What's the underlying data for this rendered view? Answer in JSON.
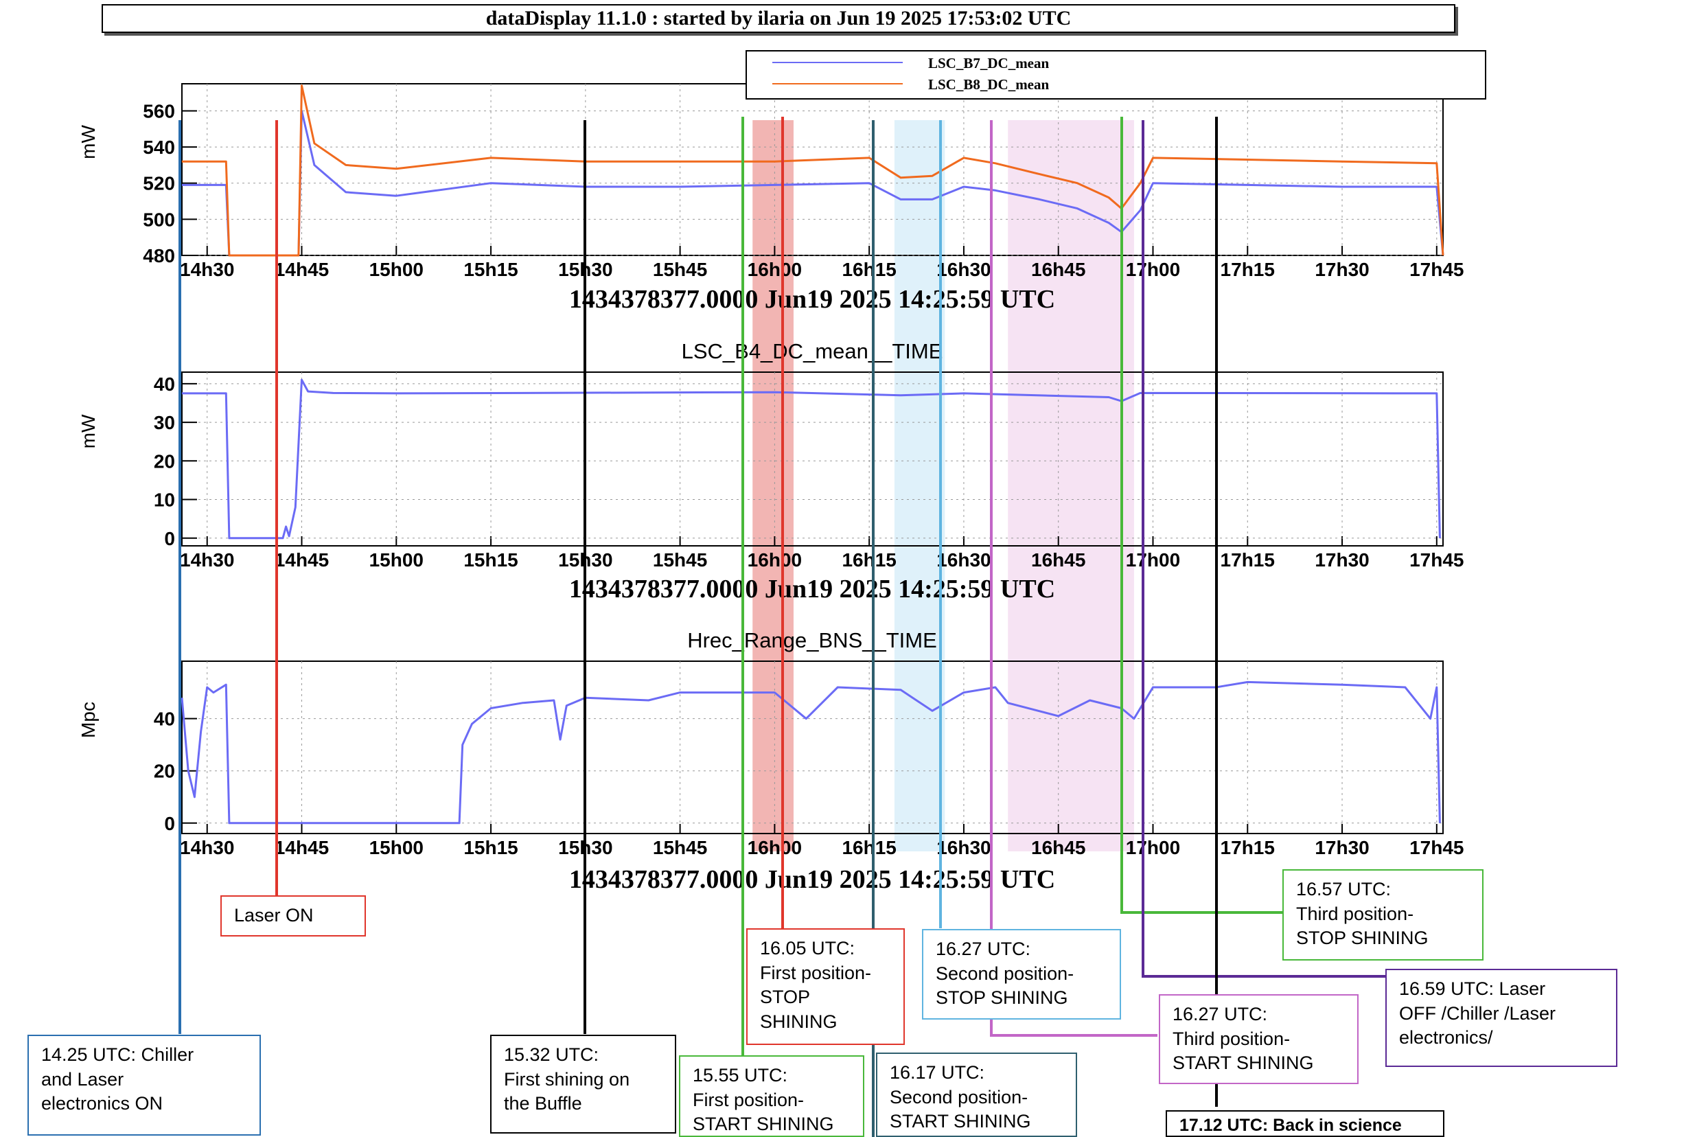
{
  "header": {
    "title": "dataDisplay 11.1.0 : started by ilaria on Jun 19 2025 17:53:02 UTC"
  },
  "time_ticks": [
    "14h30",
    "14h45",
    "15h00",
    "15h15",
    "15h30",
    "15h45",
    "16h00",
    "16h15",
    "16h30",
    "16h45",
    "17h00",
    "17h15",
    "17h30",
    "17h45"
  ],
  "colors": {
    "blue": "#6b6bf5",
    "orange": "#f06a1e",
    "red_band": "#f2b5b3",
    "cyan_band": "#dff1fa",
    "pink_band": "#f6e3f3"
  },
  "chart_data": [
    {
      "type": "line",
      "ylabel": "mW",
      "xlabel": "1434378377.0000 Jun19 2025 14:25:59 UTC",
      "title": "",
      "ylim": [
        480,
        575
      ],
      "yticks": [
        "480",
        "500",
        "520",
        "540",
        "560"
      ],
      "xlim": [
        "14:26",
        "17:46"
      ],
      "legend": {
        "placement": "top-right"
      },
      "series": [
        {
          "name": "LSC_B7_DC_mean",
          "color": "#6b6bf5",
          "x": [
            "14:26",
            "14:33",
            "14:33.5",
            "14:44.5",
            "14:45",
            "14:47",
            "14:52",
            "15:00",
            "15:15",
            "15:30",
            "15:45",
            "16:00",
            "16:15",
            "16:20",
            "16:25",
            "16:30",
            "16:35",
            "16:42",
            "16:48",
            "16:53",
            "16:55",
            "16:58",
            "17:00",
            "17:15",
            "17:30",
            "17:45",
            "17:46"
          ],
          "y": [
            519,
            519,
            480,
            480,
            560,
            530,
            515,
            513,
            520,
            518,
            518,
            519,
            520,
            511,
            511,
            518,
            516,
            511,
            506,
            498,
            493,
            505,
            520,
            519,
            518,
            518,
            480
          ]
        },
        {
          "name": "LSC_B8_DC_mean",
          "color": "#f06a1e",
          "x": [
            "14:26",
            "14:33",
            "14:33.5",
            "14:44.5",
            "14:45",
            "14:47",
            "14:52",
            "15:00",
            "15:15",
            "15:30",
            "15:45",
            "16:00",
            "16:15",
            "16:20",
            "16:25",
            "16:30",
            "16:35",
            "16:42",
            "16:48",
            "16:53",
            "16:55",
            "16:58",
            "17:00",
            "17:15",
            "17:30",
            "17:45",
            "17:46"
          ],
          "y": [
            532,
            532,
            480,
            480,
            574,
            542,
            530,
            528,
            534,
            532,
            532,
            532,
            534,
            523,
            524,
            534,
            531,
            525,
            520,
            512,
            506,
            520,
            534,
            533,
            532,
            531,
            480
          ]
        }
      ]
    },
    {
      "type": "line",
      "title": "LSC_B4_DC_mean__TIME",
      "ylabel": "mW",
      "xlabel": "1434378377.0000 Jun19 2025 14:25:59 UTC",
      "ylim": [
        -2,
        43
      ],
      "yticks": [
        "0",
        "10",
        "20",
        "30",
        "40"
      ],
      "xlim": [
        "14:26",
        "17:46"
      ],
      "series": [
        {
          "color": "#6b6bf5",
          "x": [
            "14:26",
            "14:33",
            "14:33.5",
            "14:42",
            "14:42.5",
            "14:43",
            "14:44",
            "14:45",
            "14:46",
            "14:50",
            "15:00",
            "16:00",
            "16:20",
            "16:30",
            "16:53",
            "16:55",
            "16:58",
            "17:45",
            "17:45.5"
          ],
          "y": [
            37.5,
            37.5,
            0,
            0,
            3,
            0.5,
            8,
            41,
            38,
            37.6,
            37.5,
            37.8,
            37,
            37.5,
            36.5,
            35.5,
            37.6,
            37.5,
            0
          ]
        }
      ]
    },
    {
      "type": "line",
      "title": "Hrec_Range_BNS__TIME",
      "ylabel": "Mpc",
      "xlabel": "1434378377.0000 Jun19 2025 14:25:59 UTC",
      "ylim": [
        -4,
        62
      ],
      "yticks": [
        "0",
        "20",
        "40"
      ],
      "xlim": [
        "14:26",
        "17:46"
      ],
      "series": [
        {
          "color": "#6b6bf5",
          "x": [
            "14:26",
            "14:27",
            "14:28",
            "14:29",
            "14:30",
            "14:31",
            "14:33",
            "14:33.5",
            "15:10",
            "15:10.5",
            "15:12",
            "15:15",
            "15:20",
            "15:25",
            "15:26",
            "15:27",
            "15:30",
            "15:40",
            "15:45",
            "16:00",
            "16:05",
            "16:10",
            "16:20",
            "16:25",
            "16:30",
            "16:35",
            "16:37",
            "16:45",
            "16:50",
            "16:55",
            "16:57",
            "17:00",
            "17:10",
            "17:15",
            "17:30",
            "17:40",
            "17:44",
            "17:45",
            "17:45.5"
          ],
          "y": [
            48,
            20,
            10,
            35,
            52,
            50,
            53,
            0,
            0,
            30,
            38,
            44,
            46,
            47,
            32,
            45,
            48,
            47,
            50,
            50,
            40,
            52,
            51,
            43,
            50,
            52,
            46,
            41,
            47,
            44,
            40,
            52,
            52,
            54,
            53,
            52,
            40,
            52,
            0
          ]
        }
      ]
    }
  ],
  "annotations": [
    {
      "id": "n1",
      "text": "14.25 UTC: Chiller\nand Laser\nelectronics ON",
      "color": "#2a6fb0"
    },
    {
      "id": "n2",
      "text": "Laser ON",
      "color": "#e0362c"
    },
    {
      "id": "n3",
      "text": "15.32 UTC:\nFirst shining on\nthe Buffle",
      "color": "#000000"
    },
    {
      "id": "n4",
      "text": "15.55 UTC:\nFirst position-\nSTART SHINING",
      "color": "#49b83a"
    },
    {
      "id": "n5",
      "text": "16.05 UTC:\nFirst position-\nSTOP\nSHINING",
      "color": "#e0362c"
    },
    {
      "id": "n6",
      "text": "16.17 UTC:\nSecond position-\nSTART SHINING",
      "color": "#2f5f6e"
    },
    {
      "id": "n7",
      "text": "16.27 UTC:\nSecond position-\nSTOP SHINING",
      "color": "#5fb4e0"
    },
    {
      "id": "n8",
      "text": "16.27 UTC:\nThird position-\nSTART SHINING",
      "color": "#c266c7"
    },
    {
      "id": "n9",
      "text": "16.57 UTC:\nThird position-\nSTOP SHINING",
      "color": "#49b83a"
    },
    {
      "id": "n10",
      "text": "16.59 UTC: Laser\nOFF /Chiller /Laser\nelectronics/",
      "color": "#5b2a95"
    },
    {
      "id": "n11",
      "text": "17.12 UTC: Back in science",
      "color": "#000000"
    }
  ]
}
